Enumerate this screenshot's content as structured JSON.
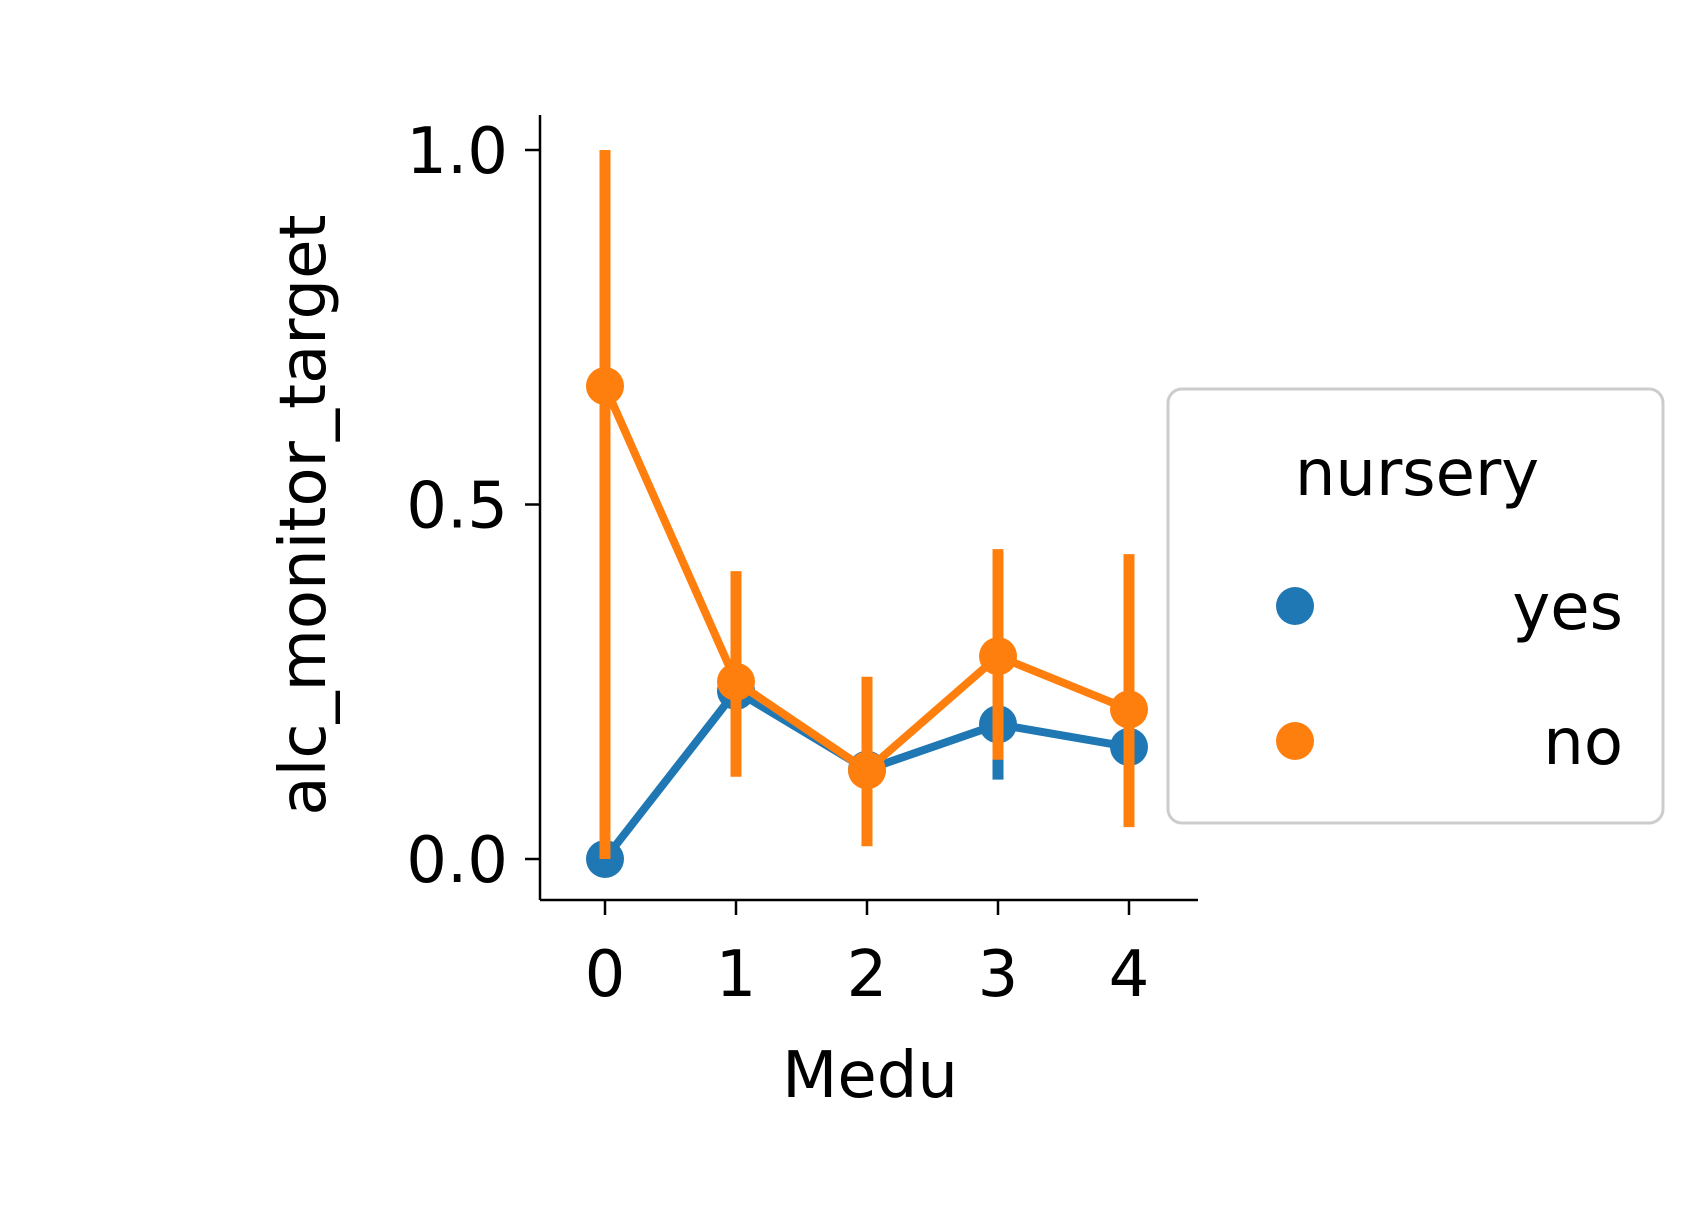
{
  "chart_data": {
    "type": "line",
    "xlabel": "Medu",
    "ylabel": "alc_monitor_target",
    "x": [
      0,
      1,
      2,
      3,
      4
    ],
    "x_tick_labels": [
      "0",
      "1",
      "2",
      "3",
      "4"
    ],
    "y_ticks": [
      0.0,
      0.5,
      1.0
    ],
    "y_tick_labels": [
      "0.0",
      "0.5",
      "1.0"
    ],
    "ylim": [
      -0.057,
      1.05
    ],
    "grid": false,
    "legend": {
      "title": "nursery",
      "placement": "right"
    },
    "series": [
      {
        "name": "yes",
        "color": "#1f77b4",
        "values": [
          0.0,
          0.237,
          0.126,
          0.19,
          0.158
        ],
        "ci_low": [
          0.0,
          0.118,
          0.05,
          0.112,
          0.07
        ],
        "ci_high": [
          0.0,
          0.36,
          0.215,
          0.285,
          0.26
        ]
      },
      {
        "name": "no",
        "color": "#ff7f0e",
        "values": [
          0.667,
          0.25,
          0.125,
          0.286,
          0.211
        ],
        "ci_low": [
          0.0,
          0.116,
          0.018,
          0.14,
          0.045
        ],
        "ci_high": [
          1.0,
          0.406,
          0.257,
          0.437,
          0.43
        ]
      }
    ]
  }
}
